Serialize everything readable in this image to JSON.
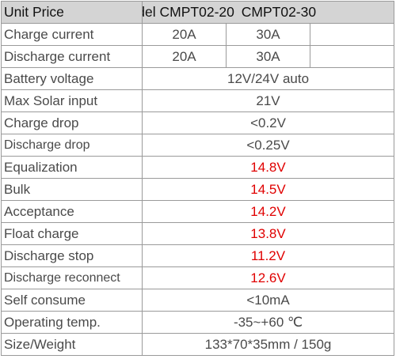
{
  "header": {
    "unit_price": "Unit Price",
    "model_label": "Model",
    "model_a": "CMPT02-20",
    "model_b": "CMPT02-30"
  },
  "rows": [
    {
      "label": "Charge current",
      "a": "20A",
      "b": "30A"
    },
    {
      "label": "Discharge current",
      "a": "20A",
      "b": "30A"
    },
    {
      "label": "Battery voltage",
      "value": "12V/24V auto"
    },
    {
      "label": "Max Solar input",
      "value": "21V"
    },
    {
      "label": "Charge drop",
      "value": "<0.2V"
    },
    {
      "label": "Discharge drop",
      "value": "<0.25V"
    },
    {
      "label": "Equalization",
      "value": "14.8V"
    },
    {
      "label": "Bulk",
      "value": "14.5V"
    },
    {
      "label": "Acceptance",
      "value": "14.2V"
    },
    {
      "label": "Float charge",
      "value": "13.8V"
    },
    {
      "label": "Discharge stop",
      "value": "11.2V"
    },
    {
      "label": "Discharge reconnect",
      "value": "12.6V"
    },
    {
      "label": "Self consume",
      "value": "<10mA"
    },
    {
      "label": "Operating temp.",
      "value": "-35~+60 ℃"
    },
    {
      "label": "Size/Weight",
      "value": "133*70*35mm / 150g"
    }
  ],
  "colors": {
    "highlight": "#e00000",
    "header_bg": "#d4d4d4",
    "text": "#4a4a4a"
  }
}
